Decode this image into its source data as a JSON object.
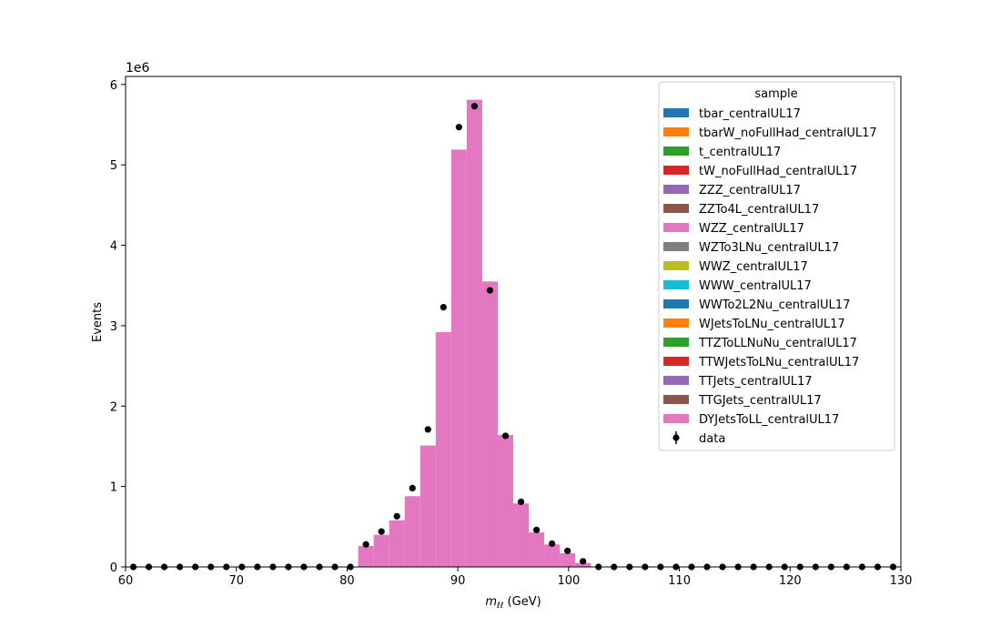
{
  "chart_data": {
    "type": "bar",
    "stacked": true,
    "xlabel_var": "m",
    "xlabel_sub": "ℓℓ",
    "xlabel_unit": " (GeV)",
    "ylabel": "Events",
    "y_offset_text": "1e6",
    "xlim": [
      60,
      130
    ],
    "ylim": [
      0,
      6.1
    ],
    "y_scale": 1000000,
    "x_ticks": [
      "60",
      "70",
      "80",
      "90",
      "100",
      "110",
      "120",
      "130"
    ],
    "y_ticks": [
      "0",
      "1",
      "2",
      "3",
      "4",
      "5",
      "6"
    ],
    "grid": false,
    "legend_title": "sample",
    "legend_position": "top-right",
    "bin_edges": [
      60.0,
      61.4,
      62.8,
      64.2,
      65.6,
      67.0,
      68.4,
      69.8,
      71.2,
      72.6,
      74.0,
      75.4,
      76.8,
      78.2,
      79.6,
      81.0,
      82.4,
      83.8,
      85.2,
      86.6,
      88.0,
      89.4,
      90.8,
      92.2,
      93.6,
      95.0,
      96.4,
      97.8,
      99.2,
      100.6,
      102.0,
      103.4,
      104.8,
      106.2,
      107.6,
      109.0,
      110.4,
      111.8,
      113.2,
      114.6,
      116.0,
      117.4,
      118.8,
      120.2,
      121.6,
      123.0,
      124.4,
      125.8,
      127.2,
      128.6,
      130.0
    ],
    "series": [
      {
        "name": "tbar_centralUL17",
        "color": "#1f77b4",
        "values": []
      },
      {
        "name": "tbarW_noFullHad_centralUL17",
        "color": "#ff7f0e",
        "values": []
      },
      {
        "name": "t_centralUL17",
        "color": "#2ca02c",
        "values": []
      },
      {
        "name": "tW_noFullHad_centralUL17",
        "color": "#d62728",
        "values": []
      },
      {
        "name": "ZZZ_centralUL17",
        "color": "#9467bd",
        "values": []
      },
      {
        "name": "ZZTo4L_centralUL17",
        "color": "#8c564b",
        "values": []
      },
      {
        "name": "WZZ_centralUL17",
        "color": "#e377c2",
        "values": []
      },
      {
        "name": "WZTo3LNu_centralUL17",
        "color": "#7f7f7f",
        "values": []
      },
      {
        "name": "WWZ_centralUL17",
        "color": "#bcbd22",
        "values": []
      },
      {
        "name": "WWW_centralUL17",
        "color": "#17becf",
        "values": []
      },
      {
        "name": "WWTo2L2Nu_centralUL17",
        "color": "#1f77b4",
        "values": []
      },
      {
        "name": "WJetsToLNu_centralUL17",
        "color": "#ff7f0e",
        "values": []
      },
      {
        "name": "TTZToLLNuNu_centralUL17",
        "color": "#2ca02c",
        "values": []
      },
      {
        "name": "TTWJetsToLNu_centralUL17",
        "color": "#d62728",
        "values": []
      },
      {
        "name": "TTJets_centralUL17",
        "color": "#9467bd",
        "values": []
      },
      {
        "name": "TTGJets_centralUL17",
        "color": "#8c564b",
        "values": []
      },
      {
        "name": "DYJetsToLL_centralUL17",
        "color": "#e377c2",
        "values": [
          0,
          0,
          0,
          0,
          0,
          0,
          0,
          0,
          0,
          0,
          0,
          0,
          0,
          0,
          0,
          0.26,
          0.4,
          0.58,
          0.88,
          1.51,
          2.92,
          5.19,
          5.81,
          3.55,
          1.64,
          0.79,
          0.43,
          0.28,
          0.17,
          0.05,
          0,
          0,
          0,
          0,
          0,
          0,
          0,
          0,
          0,
          0,
          0,
          0,
          0,
          0,
          0,
          0,
          0,
          0,
          0,
          0
        ]
      }
    ],
    "data_series": {
      "name": "data",
      "color": "#000000",
      "values": [
        0,
        0,
        0,
        0,
        0,
        0,
        0,
        0,
        0,
        0,
        0,
        0,
        0,
        0,
        0,
        0.28,
        0.44,
        0.63,
        0.98,
        1.71,
        3.23,
        5.47,
        5.73,
        3.44,
        1.63,
        0.81,
        0.46,
        0.29,
        0.2,
        0.07,
        0,
        0,
        0,
        0,
        0,
        0,
        0,
        0,
        0,
        0,
        0,
        0,
        0,
        0,
        0,
        0,
        0,
        0,
        0,
        0
      ]
    }
  }
}
